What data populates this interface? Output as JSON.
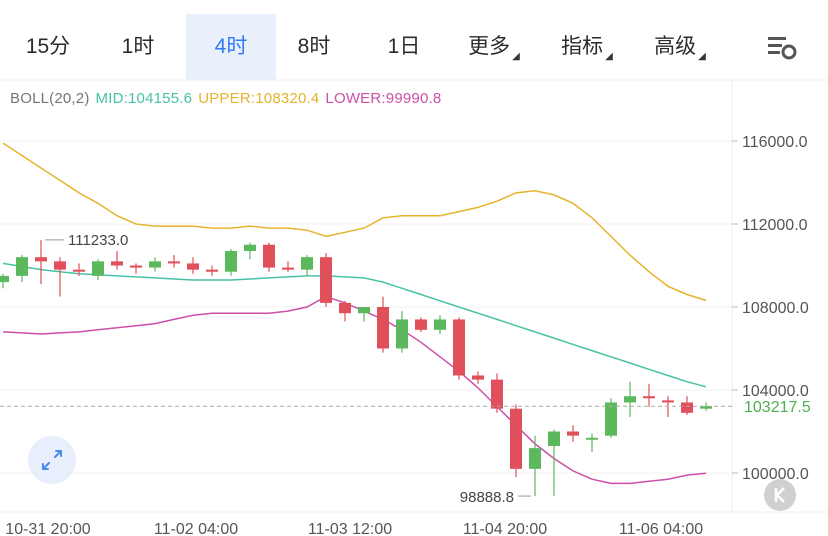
{
  "toolbar": {
    "tabs": [
      {
        "label": "15分",
        "active": false,
        "dropdown": false
      },
      {
        "label": "1时",
        "active": false,
        "dropdown": false
      },
      {
        "label": "4时",
        "active": true,
        "dropdown": false
      },
      {
        "label": "8时",
        "active": false,
        "dropdown": false
      },
      {
        "label": "1日",
        "active": false,
        "dropdown": false
      },
      {
        "label": "更多",
        "active": false,
        "dropdown": true
      },
      {
        "label": "指标",
        "active": false,
        "dropdown": true
      },
      {
        "label": "高级",
        "active": false,
        "dropdown": true
      }
    ],
    "settings_icon": "chart-settings-icon"
  },
  "legend": {
    "boll": "BOLL(20,2)",
    "mid": "MID:104155.6",
    "upper": "UPPER:108320.4",
    "lower": "LOWER:99990.8"
  },
  "colors": {
    "up": "#5cb85c",
    "down": "#e0505a",
    "mid": "#47c2a6",
    "upper": "#e6b32e",
    "lower": "#cc4fa8",
    "axis_text": "#555555",
    "price_tag": "#4caf50",
    "accent": "#2f7cf6"
  },
  "chart_data": {
    "type": "candlestick",
    "y_ticks": [
      100000,
      104000,
      108000,
      112000,
      116000
    ],
    "y_tick_labels": [
      "100000.0",
      "104000.0",
      "108000.0",
      "112000.0",
      "116000.0"
    ],
    "x_tick_labels": [
      "10-31 20:00",
      "11-02 04:00",
      "11-03 12:00",
      "11-04 20:00",
      "11-06 04:00"
    ],
    "current_price": 103217.5,
    "current_price_label": "103217.5",
    "max_label": "111233.0",
    "min_label": "98888.8",
    "candles": [
      {
        "o": 109200,
        "h": 109600,
        "l": 108900,
        "c": 109500
      },
      {
        "o": 109500,
        "h": 110500,
        "l": 109200,
        "c": 110400
      },
      {
        "o": 110400,
        "h": 111233,
        "l": 109100,
        "c": 110200
      },
      {
        "o": 110200,
        "h": 110400,
        "l": 108500,
        "c": 109800
      },
      {
        "o": 109800,
        "h": 110100,
        "l": 109500,
        "c": 109700
      },
      {
        "o": 109500,
        "h": 110300,
        "l": 109300,
        "c": 110200
      },
      {
        "o": 110200,
        "h": 110700,
        "l": 109800,
        "c": 110000
      },
      {
        "o": 110000,
        "h": 110100,
        "l": 109600,
        "c": 109900
      },
      {
        "o": 109900,
        "h": 110400,
        "l": 109700,
        "c": 110200
      },
      {
        "o": 110200,
        "h": 110500,
        "l": 109900,
        "c": 110100
      },
      {
        "o": 110100,
        "h": 110400,
        "l": 109600,
        "c": 109800
      },
      {
        "o": 109800,
        "h": 110000,
        "l": 109500,
        "c": 109700
      },
      {
        "o": 109700,
        "h": 110800,
        "l": 109500,
        "c": 110700
      },
      {
        "o": 110700,
        "h": 111100,
        "l": 110300,
        "c": 111000
      },
      {
        "o": 111000,
        "h": 111100,
        "l": 109700,
        "c": 109900
      },
      {
        "o": 109900,
        "h": 110200,
        "l": 109700,
        "c": 109800
      },
      {
        "o": 109800,
        "h": 110500,
        "l": 109500,
        "c": 110400
      },
      {
        "o": 110400,
        "h": 110600,
        "l": 108000,
        "c": 108200
      },
      {
        "o": 108200,
        "h": 108300,
        "l": 107300,
        "c": 107700
      },
      {
        "o": 107700,
        "h": 108000,
        "l": 107300,
        "c": 108000
      },
      {
        "o": 108000,
        "h": 108500,
        "l": 105800,
        "c": 106000
      },
      {
        "o": 106000,
        "h": 107800,
        "l": 105800,
        "c": 107400
      },
      {
        "o": 107400,
        "h": 107500,
        "l": 106800,
        "c": 106900
      },
      {
        "o": 106900,
        "h": 107600,
        "l": 106700,
        "c": 107400
      },
      {
        "o": 107400,
        "h": 107500,
        "l": 104500,
        "c": 104700
      },
      {
        "o": 104700,
        "h": 104900,
        "l": 104300,
        "c": 104500
      },
      {
        "o": 104500,
        "h": 104800,
        "l": 102900,
        "c": 103100
      },
      {
        "o": 103100,
        "h": 103300,
        "l": 99800,
        "c": 100200
      },
      {
        "o": 100200,
        "h": 101800,
        "l": 98888.8,
        "c": 101200
      },
      {
        "o": 101300,
        "h": 102100,
        "l": 98900,
        "c": 102000
      },
      {
        "o": 102000,
        "h": 102300,
        "l": 101500,
        "c": 101800
      },
      {
        "o": 101700,
        "h": 101900,
        "l": 101000,
        "c": 101700
      },
      {
        "o": 101800,
        "h": 103600,
        "l": 101700,
        "c": 103400
      },
      {
        "o": 103400,
        "h": 104400,
        "l": 102700,
        "c": 103700
      },
      {
        "o": 103700,
        "h": 104300,
        "l": 103200,
        "c": 103600
      },
      {
        "o": 103500,
        "h": 103700,
        "l": 102700,
        "c": 103400
      },
      {
        "o": 103400,
        "h": 103700,
        "l": 102800,
        "c": 102900
      },
      {
        "o": 103100,
        "h": 103400,
        "l": 103000,
        "c": 103217.5
      }
    ],
    "mid": [
      110100,
      109950,
      109800,
      109700,
      109600,
      109550,
      109500,
      109450,
      109400,
      109350,
      109300,
      109300,
      109300,
      109350,
      109400,
      109450,
      109500,
      109500,
      109450,
      109400,
      109200,
      108900,
      108600,
      108300,
      108000,
      107700,
      107400,
      107100,
      106800,
      106500,
      106200,
      105900,
      105600,
      105300,
      105000,
      104700,
      104400,
      104155.6
    ],
    "upper": [
      115900,
      115300,
      114700,
      114100,
      113500,
      113000,
      112400,
      112000,
      111900,
      111900,
      111900,
      111800,
      111800,
      111900,
      111800,
      111800,
      111700,
      111400,
      111600,
      111800,
      112300,
      112400,
      112400,
      112400,
      112600,
      112800,
      113100,
      113500,
      113600,
      113400,
      113000,
      112300,
      111400,
      110500,
      109700,
      109000,
      108600,
      108320.4
    ],
    "lower": [
      106800,
      106750,
      106700,
      106750,
      106800,
      106900,
      107000,
      107100,
      107200,
      107400,
      107600,
      107700,
      107700,
      107700,
      107700,
      107800,
      108000,
      108500,
      108200,
      107800,
      107400,
      106900,
      106300,
      105600,
      104900,
      104100,
      103200,
      102300,
      101400,
      100700,
      100100,
      99700,
      99500,
      99500,
      99600,
      99700,
      99900,
      99990.8
    ]
  },
  "controls": {
    "expand_icon": "expand-arrows-icon",
    "k_icon": "k-toggle-icon"
  }
}
